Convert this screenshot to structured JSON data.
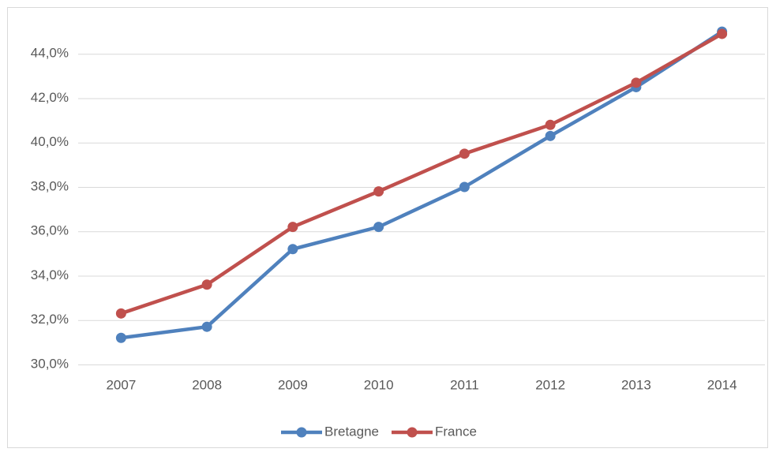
{
  "chart_data": {
    "type": "line",
    "categories": [
      "2007",
      "2008",
      "2009",
      "2010",
      "2011",
      "2012",
      "2013",
      "2014"
    ],
    "series": [
      {
        "name": "Bretagne",
        "color": "#4f81bd",
        "values": [
          31.2,
          31.7,
          35.2,
          36.2,
          38.0,
          40.3,
          42.5,
          45.0
        ]
      },
      {
        "name": "France",
        "color": "#c0504d",
        "values": [
          32.3,
          33.6,
          36.2,
          37.8,
          39.5,
          40.8,
          42.7,
          44.9
        ]
      }
    ],
    "ylim": [
      30,
      46
    ],
    "yticks": [
      {
        "value": 30,
        "label": "30,0%"
      },
      {
        "value": 32,
        "label": "32,0%"
      },
      {
        "value": 34,
        "label": "34,0%"
      },
      {
        "value": 36,
        "label": "36,0%"
      },
      {
        "value": 38,
        "label": "38,0%"
      },
      {
        "value": 40,
        "label": "40,0%"
      },
      {
        "value": 42,
        "label": "42,0%"
      },
      {
        "value": 44,
        "label": "44,0%"
      }
    ],
    "grid": true,
    "legend": "bottom"
  }
}
